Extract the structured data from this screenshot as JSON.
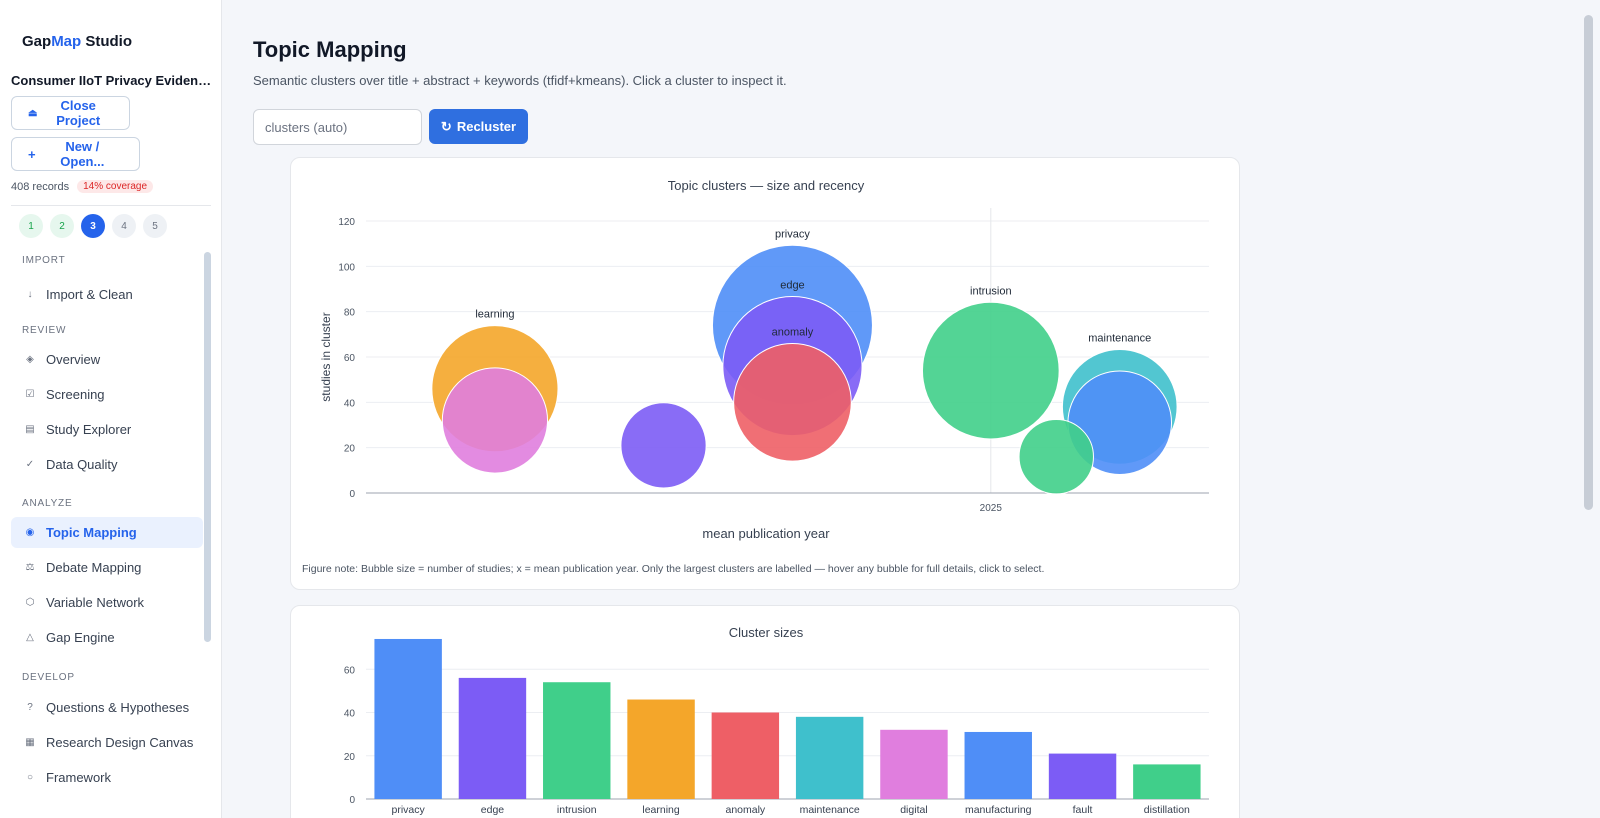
{
  "app": {
    "brand_prefix": "Gap",
    "brand_accent": "Map",
    "brand_suffix": " Studio",
    "project_name": "Consumer IIoT Privacy Evidence ...",
    "close_project_label": "Close Project",
    "new_open_label": "New / Open...",
    "records_label": "408 records",
    "coverage_label": "14% coverage",
    "steps": [
      "1",
      "2",
      "3",
      "4",
      "5"
    ],
    "active_step": "3"
  },
  "nav": {
    "import_header": "IMPORT",
    "import_clean": "Import & Clean",
    "review_header": "REVIEW",
    "overview": "Overview",
    "screening": "Screening",
    "study_explorer": "Study Explorer",
    "data_quality": "Data Quality",
    "analyze_header": "ANALYZE",
    "topic_mapping": "Topic Mapping",
    "debate_mapping": "Debate Mapping",
    "variable_network": "Variable Network",
    "gap_engine": "Gap Engine",
    "develop_header": "DEVELOP",
    "questions_hypotheses": "Questions & Hypotheses",
    "research_design_canvas": "Research Design Canvas",
    "framework": "Framework"
  },
  "main": {
    "title": "Topic Mapping",
    "subtitle": "Semantic clusters over title + abstract + keywords (tfidf+kmeans). Click a cluster to inspect it.",
    "clusters_placeholder": "clusters (auto)",
    "recluster_label": "Recluster"
  },
  "colors": {
    "accent": "#2563eb",
    "blue": "#4f8ef7",
    "purple": "#7c5cf5",
    "green": "#40cf8a",
    "orange": "#f4a62a",
    "red": "#ee5f66",
    "teal": "#3fc0cc",
    "pink": "#e07ede"
  },
  "chart_data": [
    {
      "type": "scatter",
      "title": "Topic clusters — size and recency",
      "xlabel": "mean publication year",
      "ylabel": "studies in cluster",
      "ylim": [
        0,
        120
      ],
      "yticks": [
        0,
        20,
        40,
        60,
        80,
        100,
        120
      ],
      "xlim": [
        2021.85,
        2026.1
      ],
      "xticks": [
        2025
      ],
      "grid": true,
      "note": "Figure note: Bubble size = number of studies; x = mean publication year. Only the largest clusters are labelled — hover any bubble for full details, click to select.",
      "points": [
        {
          "name": "privacy",
          "x": 2024.0,
          "y": 74,
          "size": 74,
          "color": "#4f8ef7",
          "label": "privacy"
        },
        {
          "name": "edge",
          "x": 2024.0,
          "y": 56,
          "size": 56,
          "color": "#7c5cf5",
          "label": "edge"
        },
        {
          "name": "intrusion",
          "x": 2025.0,
          "y": 54,
          "size": 54,
          "color": "#40cf8a",
          "label": "intrusion"
        },
        {
          "name": "learning",
          "x": 2022.5,
          "y": 46,
          "size": 46,
          "color": "#f4a62a",
          "label": "learning"
        },
        {
          "name": "anomaly",
          "x": 2024.0,
          "y": 40,
          "size": 40,
          "color": "#ee5f66",
          "label": "anomaly"
        },
        {
          "name": "maintenance",
          "x": 2025.65,
          "y": 38,
          "size": 38,
          "color": "#3fc0cc",
          "label": "maintenance"
        },
        {
          "name": "digital",
          "x": 2022.5,
          "y": 32,
          "size": 32,
          "color": "#e07ede",
          "label": ""
        },
        {
          "name": "manufacturing",
          "x": 2025.65,
          "y": 31,
          "size": 31,
          "color": "#4f8ef7",
          "label": ""
        },
        {
          "name": "fault",
          "x": 2023.35,
          "y": 21,
          "size": 21,
          "color": "#7c5cf5",
          "label": ""
        },
        {
          "name": "distillation",
          "x": 2025.33,
          "y": 16,
          "size": 16,
          "color": "#40cf8a",
          "label": ""
        }
      ]
    },
    {
      "type": "bar",
      "title": "Cluster sizes",
      "categories": [
        "privacy",
        "edge",
        "intrusion",
        "learning",
        "anomaly",
        "maintenance",
        "digital",
        "manufacturing",
        "fault",
        "distillation"
      ],
      "values": [
        74,
        56,
        54,
        46,
        40,
        38,
        32,
        31,
        21,
        16
      ],
      "colors": [
        "#4f8ef7",
        "#7c5cf5",
        "#40cf8a",
        "#f4a62a",
        "#ee5f66",
        "#3fc0cc",
        "#e07ede",
        "#4f8ef7",
        "#7c5cf5",
        "#40cf8a"
      ],
      "ylim": [
        0,
        80
      ],
      "yticks": [
        0,
        20,
        40,
        60
      ],
      "grid": true
    }
  ]
}
